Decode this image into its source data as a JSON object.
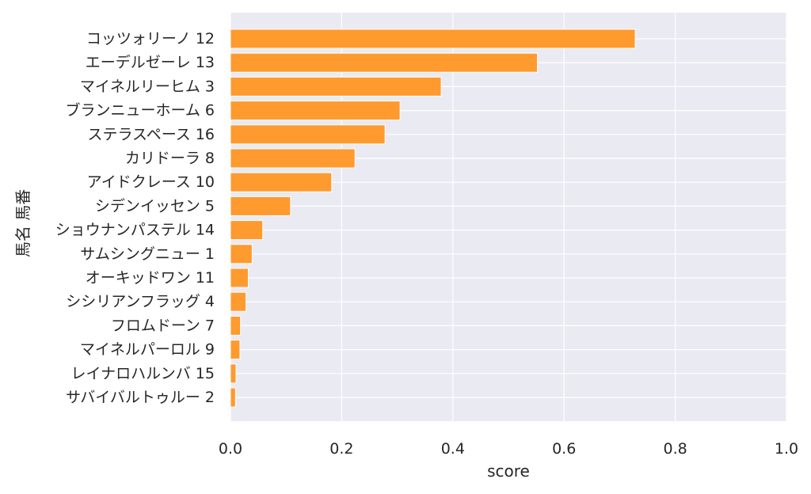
{
  "chart_data": {
    "type": "bar",
    "orientation": "horizontal",
    "xlabel": "score",
    "ylabel": "馬名 馬番",
    "xlim": [
      0.0,
      1.0
    ],
    "xticks": [
      "0.0",
      "0.2",
      "0.4",
      "0.6",
      "0.8",
      "1.0"
    ],
    "grid": true,
    "categories": [
      "コッツォリーノ 12",
      "エーデルゼーレ 13",
      "マイネルリーヒム 3",
      "ブランニューホーム 6",
      "ステラスペース 16",
      "カリドーラ 8",
      "アイドクレース 10",
      "シデンイッセン 5",
      "ショウナンパステル 14",
      "サムシングニュー 1",
      "オーキッドワン 11",
      "シシリアンフラッグ 4",
      "フロムドーン 7",
      "マイネルパーロル 9",
      "レイナロハルンバ 15",
      "サバイバルトゥルー 2"
    ],
    "values": [
      0.728,
      0.552,
      0.379,
      0.305,
      0.278,
      0.224,
      0.182,
      0.108,
      0.058,
      0.039,
      0.032,
      0.028,
      0.018,
      0.017,
      0.01,
      0.009
    ],
    "colors": {
      "bar": "#ff9a2e",
      "bar_edge": "#ffffff",
      "background": "#eaeaf2",
      "grid": "#ffffff",
      "text": "#262626"
    }
  }
}
